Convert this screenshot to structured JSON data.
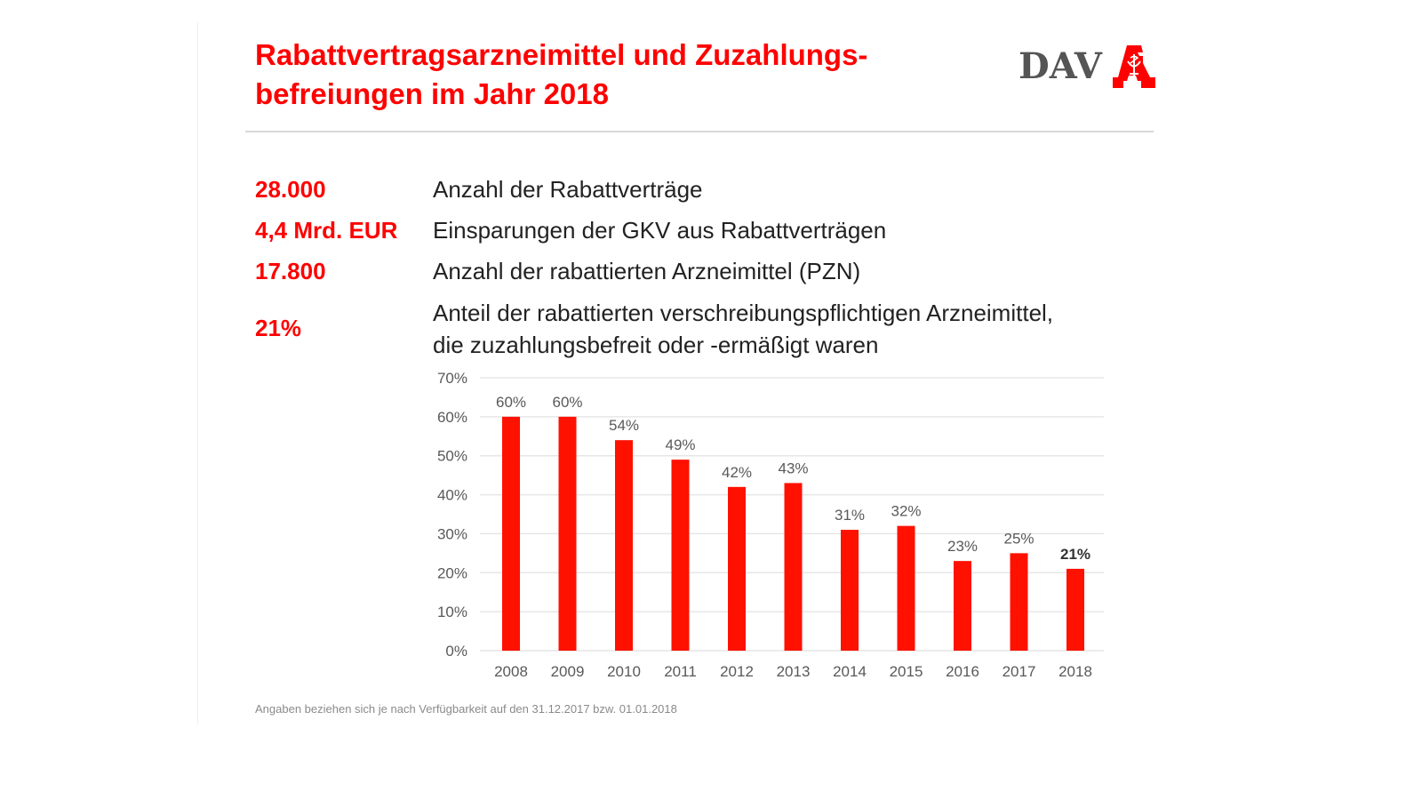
{
  "header": {
    "title_line1": "Rabattvertragsarzneimittel und Zuzahlungs-",
    "title_line2": "befreiungen im Jahr 2018",
    "logo_text": "DAV",
    "logo_icon": "apotheke-a-icon"
  },
  "kpis": [
    {
      "value": "28.000",
      "description": "Anzahl der Rabattverträge"
    },
    {
      "value": "4,4 Mrd. EUR",
      "description": "Einsparungen der GKV aus Rabattverträgen"
    },
    {
      "value": "17.800",
      "description": "Anzahl der rabattierten Arzneimittel (PZN)"
    },
    {
      "value": "21%",
      "description_line1": "Anteil der rabattierten verschreibungspflichtigen Arzneimittel,",
      "description_line2": "die zuzahlungsbefreit oder -ermäßigt waren"
    }
  ],
  "colors": {
    "accent": "#ff0000",
    "bar": "#ff1100",
    "grid": "#e6e6e6",
    "axis_text": "#595959",
    "logo_gray": "#555555"
  },
  "chart_data": {
    "type": "bar",
    "title": "",
    "xlabel": "",
    "ylabel": "",
    "categories": [
      "2008",
      "2009",
      "2010",
      "2011",
      "2012",
      "2013",
      "2014",
      "2015",
      "2016",
      "2017",
      "2018"
    ],
    "values": [
      60,
      60,
      54,
      49,
      42,
      43,
      31,
      32,
      23,
      25,
      21
    ],
    "data_labels": [
      "60%",
      "60%",
      "54%",
      "49%",
      "42%",
      "43%",
      "31%",
      "32%",
      "23%",
      "25%",
      "21%"
    ],
    "highlight_label_index": 10,
    "ylim": [
      0,
      70
    ],
    "yticks": [
      0,
      10,
      20,
      30,
      40,
      50,
      60,
      70
    ],
    "ytick_labels": [
      "0%",
      "10%",
      "20%",
      "30%",
      "40%",
      "50%",
      "60%",
      "70%"
    ],
    "grid": true,
    "legend": "none"
  },
  "footnote": "Angaben beziehen sich je nach Verfügbarkeit auf den 31.12.2017 bzw. 01.01.2018"
}
